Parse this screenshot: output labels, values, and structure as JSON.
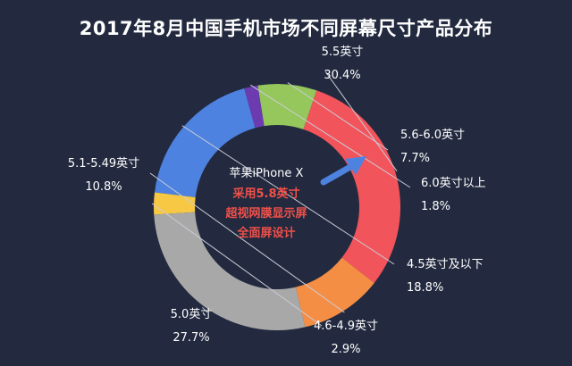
{
  "chart_data": {
    "type": "pie",
    "title": "2017年8月中国手机市场不同屏幕尺寸产品分布",
    "slices": [
      {
        "label": "5.5英寸",
        "value": 30.4,
        "display": "30.4%",
        "color": "#f2545b"
      },
      {
        "label": "5.6-6.0英寸",
        "value": 7.7,
        "display": "7.7%",
        "color": "#95c75c"
      },
      {
        "label": "6.0英寸以上",
        "value": 1.8,
        "display": "1.8%",
        "color": "#6c3bb0"
      },
      {
        "label": "4.5英寸及以下",
        "value": 18.8,
        "display": "18.8%",
        "color": "#4d82e0"
      },
      {
        "label": "4.6-4.9英寸",
        "value": 2.9,
        "display": "2.9%",
        "color": "#f6c844"
      },
      {
        "label": "5.0英寸",
        "value": 27.7,
        "display": "27.7%",
        "color": "#a8a8a8"
      },
      {
        "label": "5.1-5.49英寸",
        "value": 10.8,
        "display": "10.8%",
        "color": "#f58e45"
      }
    ],
    "annotation": {
      "line1": "苹果iPhone X",
      "line2": "采用5.8英寸",
      "line3": "超视网膜显示屏",
      "line4": "全面屏设计",
      "arrow_color": "#4d82e0"
    }
  }
}
